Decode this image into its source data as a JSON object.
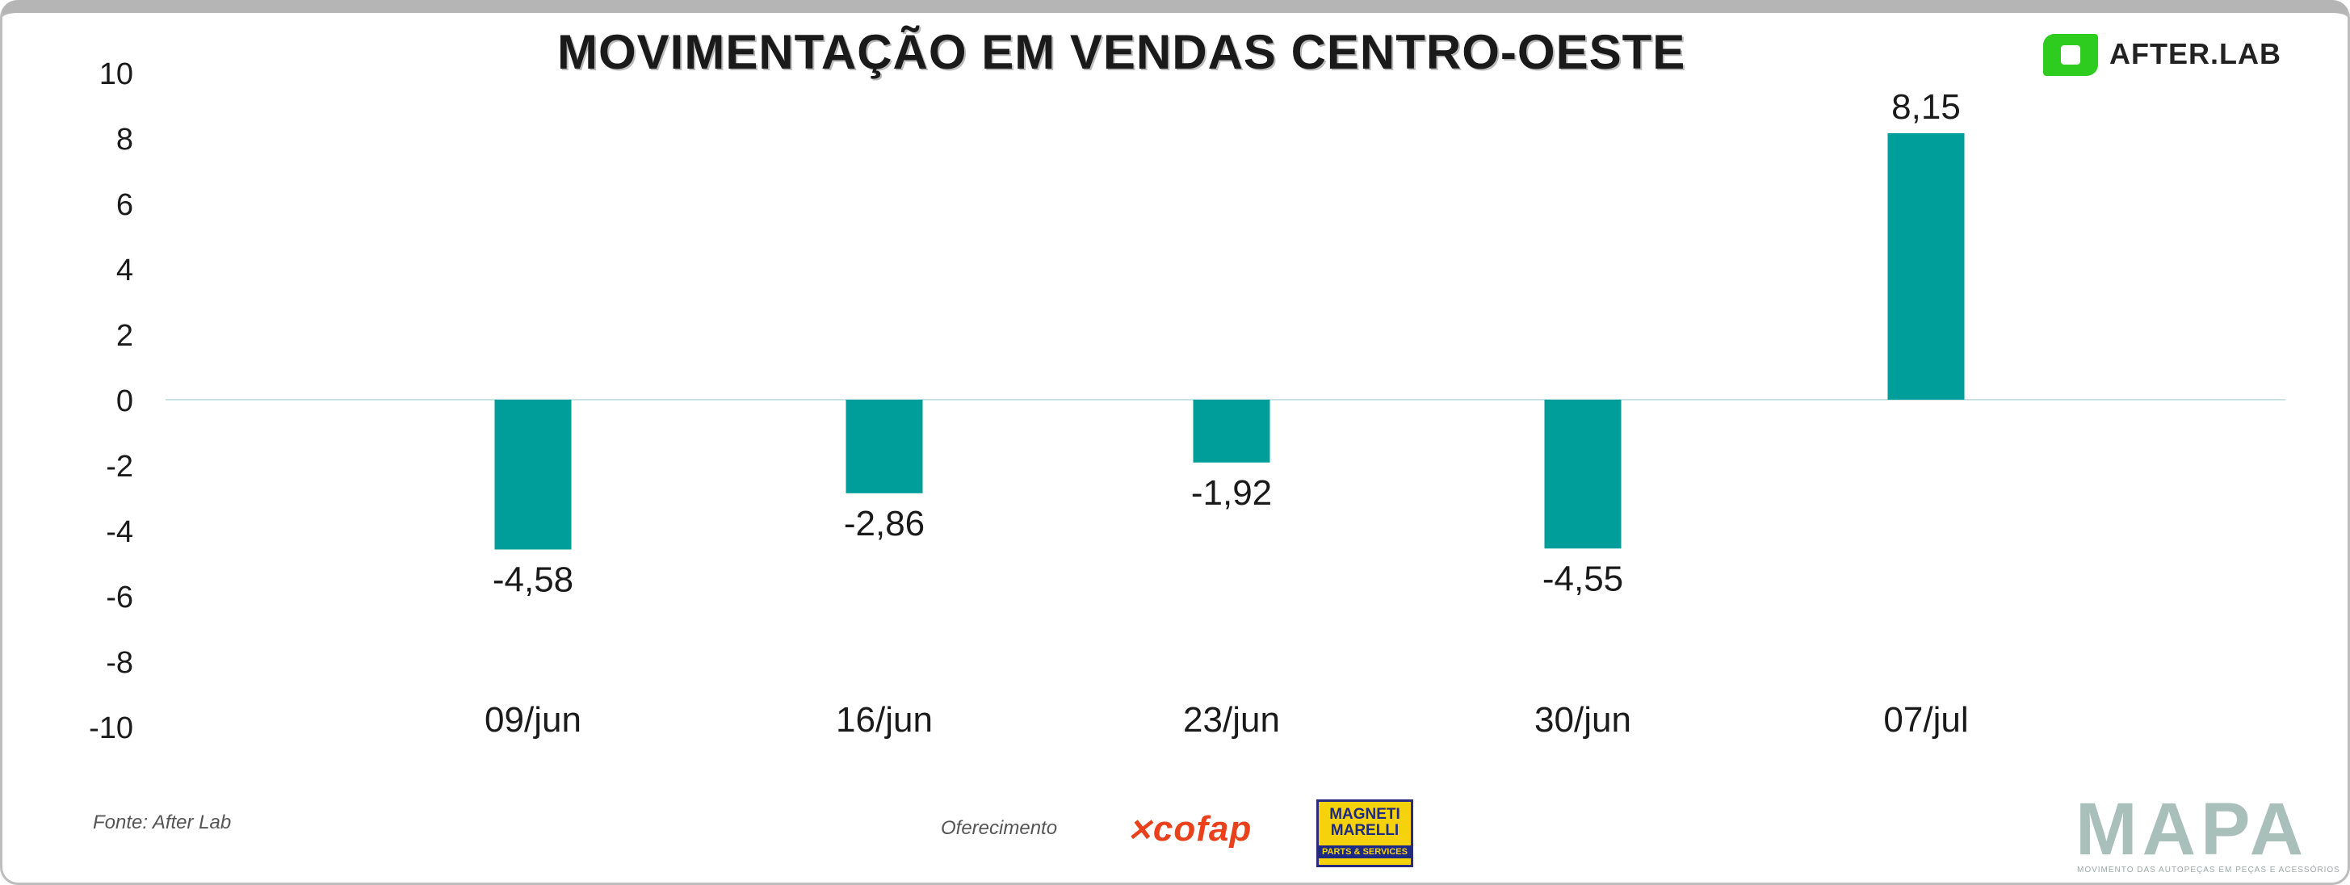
{
  "title": "MOVIMENTAÇÃO EM VENDAS CENTRO-OESTE",
  "logo_text": "AFTER.LAB",
  "footer": {
    "source": "Fonte: After Lab",
    "sponsor_label": "Oferecimento",
    "sponsor_1": "cofap",
    "sponsor_2_line1": "MAGNETI MARELLI",
    "sponsor_2_line2": "PARTS & SERVICES",
    "brand": "MAPA",
    "brand_tagline": "MOVIMENTO DAS AUTOPEÇAS EM PEÇAS E ACESSÓRIOS"
  },
  "colors": {
    "bar": "#009e9a",
    "zero_line": "#c9e3e2",
    "logo_green": "#2ecc1e"
  },
  "chart_data": {
    "type": "bar",
    "title": "MOVIMENTAÇÃO EM VENDAS CENTRO-OESTE",
    "categories": [
      "09/jun",
      "16/jun",
      "23/jun",
      "30/jun",
      "07/jul"
    ],
    "values": [
      -4.58,
      -2.86,
      -1.92,
      -4.55,
      8.15
    ],
    "value_labels": [
      "-4,58",
      "-2,86",
      "-1,92",
      "-4,55",
      "8,15"
    ],
    "yticks": [
      "10",
      "8",
      "6",
      "4",
      "2",
      "0",
      "-2",
      "-4",
      "-6",
      "-8",
      "-10"
    ],
    "ylim": [
      -10,
      10
    ],
    "xlabel": "",
    "ylabel": "",
    "grid": false,
    "legend": "none"
  }
}
